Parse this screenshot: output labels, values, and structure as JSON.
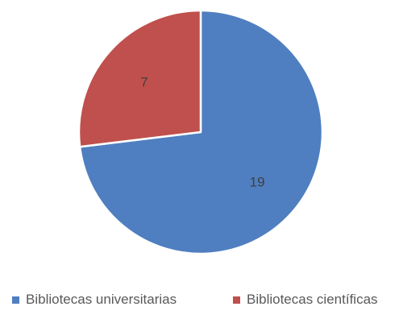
{
  "chart_data": {
    "type": "pie",
    "categories": [
      "Bibliotecas universitarias",
      "Bibliotecas científicas"
    ],
    "values": [
      19,
      7
    ],
    "colors": [
      "#4f7fc0",
      "#c0504d"
    ],
    "data_labels": [
      "19",
      "7"
    ],
    "legend": {
      "placement": "bottom",
      "entries": [
        "Bibliotecas universitarias",
        "Bibliotecas científicas"
      ]
    }
  }
}
